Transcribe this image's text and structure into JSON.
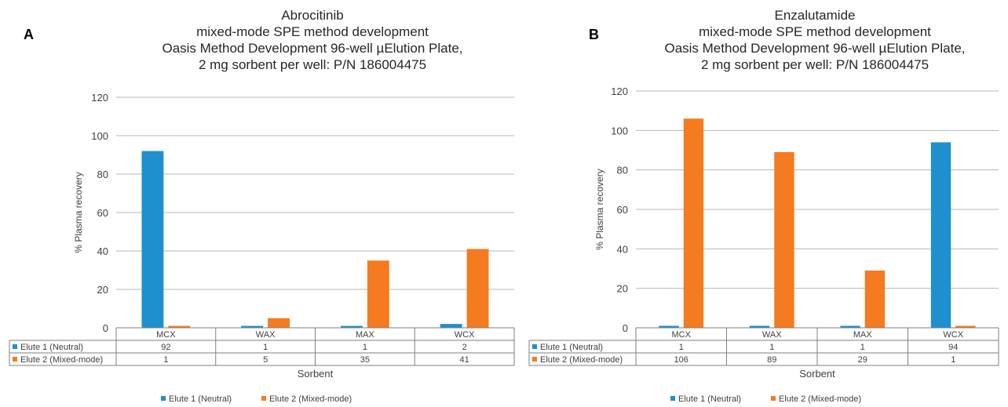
{
  "colors": {
    "elute1": "#1e90cf",
    "elute2": "#f47b20",
    "grid": "#b7b7b7",
    "table_border": "#7f7f7f"
  },
  "chart_data": [
    {
      "panel": "A",
      "type": "bar",
      "title": [
        "Abrocitinib",
        "mixed-mode SPE method development",
        "Oasis Method Development 96-well µElution Plate,",
        "2 mg sorbent per well: P/N 186004475"
      ],
      "xlabel": "Sorbent",
      "ylabel": "% Plasma recovery",
      "ylim": [
        0,
        120
      ],
      "yticks": [
        0,
        20,
        40,
        60,
        80,
        100,
        120
      ],
      "grid": true,
      "legend_position": "bottom",
      "categories": [
        "MCX",
        "WAX",
        "MAX",
        "WCX"
      ],
      "series": [
        {
          "name": "Elute 1 (Neutral)",
          "values": [
            92,
            1,
            1,
            2
          ]
        },
        {
          "name": "Elute 2 (Mixed-mode)",
          "values": [
            1,
            5,
            35,
            41
          ]
        }
      ]
    },
    {
      "panel": "B",
      "type": "bar",
      "title": [
        "Enzalutamide",
        "mixed-mode SPE method development",
        "Oasis Method Development 96-well µElution Plate,",
        "2 mg sorbent per well: P/N 186004475"
      ],
      "xlabel": "Sorbent",
      "ylabel": "% Plasma recovery",
      "ylim": [
        0,
        120
      ],
      "yticks": [
        0,
        20,
        40,
        60,
        80,
        100,
        120
      ],
      "grid": true,
      "legend_position": "bottom",
      "categories": [
        "MCX",
        "WAX",
        "MAX",
        "WCX"
      ],
      "series": [
        {
          "name": "Elute 1 (Neutral)",
          "values": [
            1,
            1,
            1,
            94
          ]
        },
        {
          "name": "Elute 2 (Mixed-mode)",
          "values": [
            106,
            89,
            29,
            1
          ]
        }
      ]
    }
  ]
}
